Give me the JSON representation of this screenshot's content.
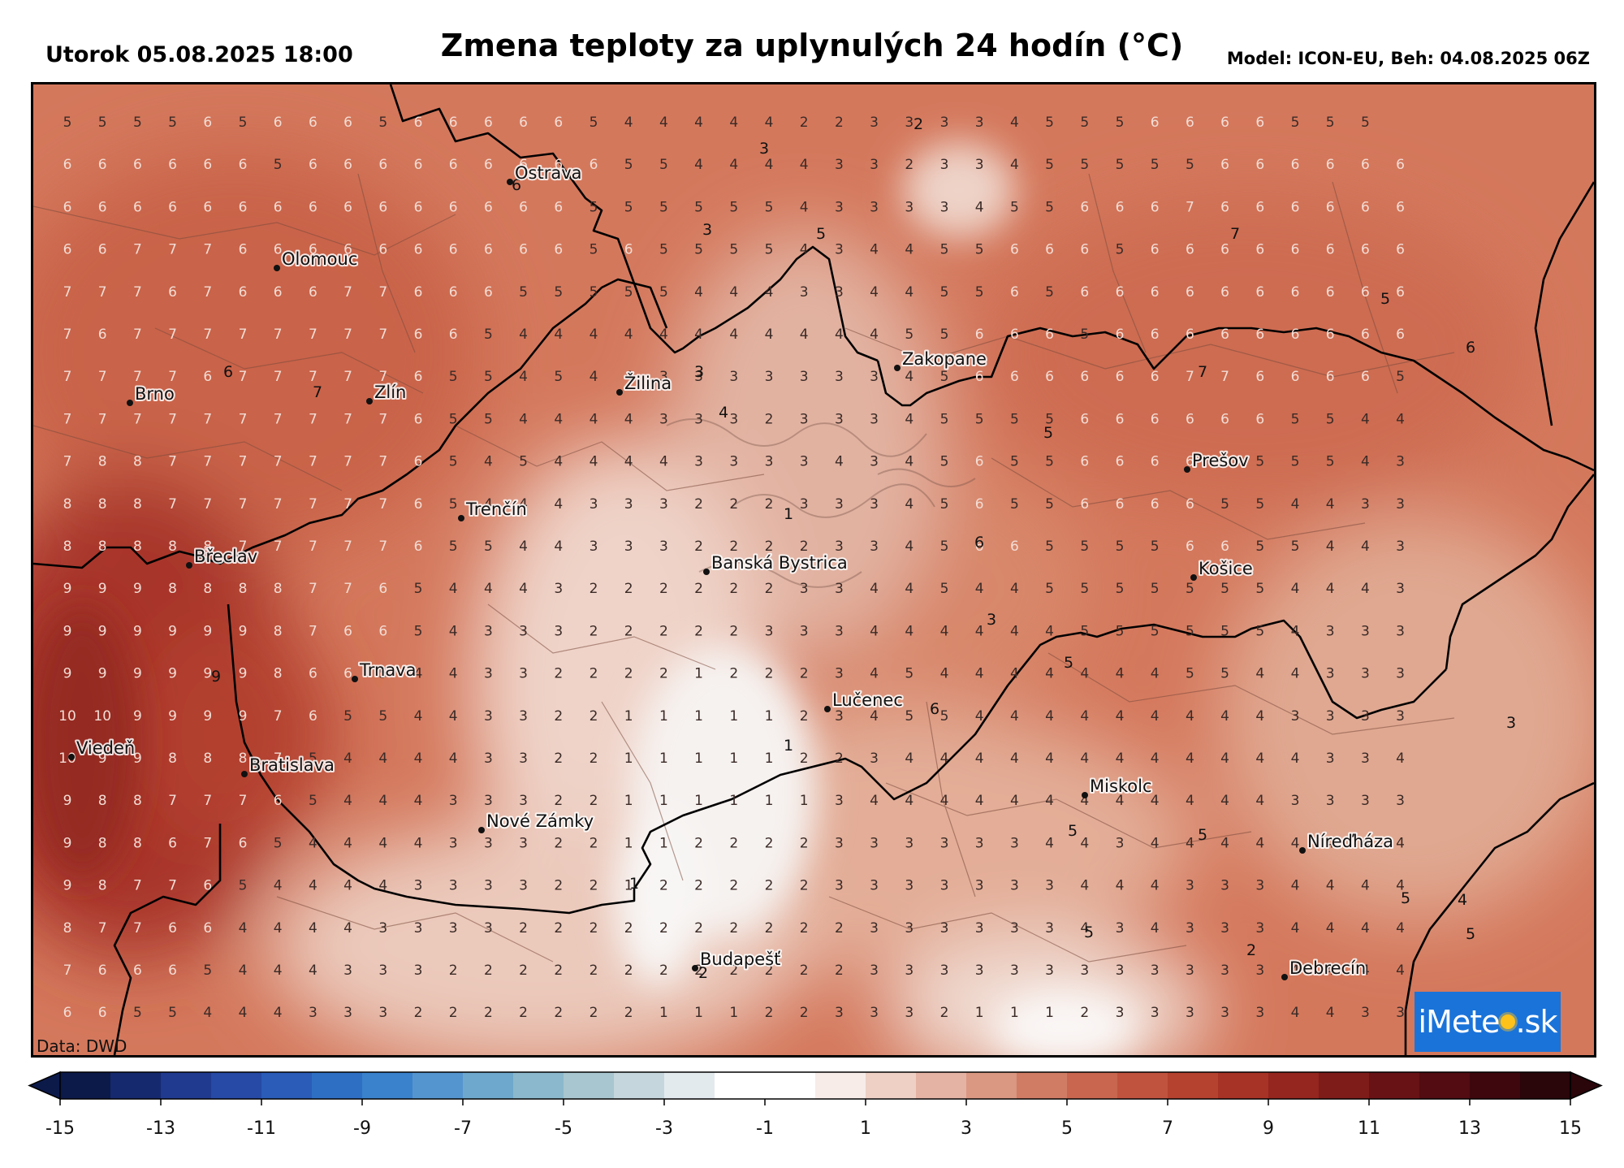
{
  "header": {
    "date": "Utorok 05.08.2025 18:00",
    "title": "Zmena teploty za uplynulých 24 hodín (°C)",
    "model": "Model: ICON-EU, Beh: 04.08.2025 06Z"
  },
  "source": "Data: DWD",
  "logo": {
    "prefix": "iMete",
    "suffix": ".sk"
  },
  "cities": [
    {
      "name": "Ostrava"
    },
    {
      "name": "Olomouc"
    },
    {
      "name": "Brno"
    },
    {
      "name": "Zlín"
    },
    {
      "name": "Žilina"
    },
    {
      "name": "Zakopane"
    },
    {
      "name": "Prešov"
    },
    {
      "name": "Trenčín"
    },
    {
      "name": "Břeclav"
    },
    {
      "name": "Banská Bystrica"
    },
    {
      "name": "Košice"
    },
    {
      "name": "Trnava"
    },
    {
      "name": "Lučenec"
    },
    {
      "name": "Viedeň"
    },
    {
      "name": "Bratislava"
    },
    {
      "name": "Miskolc"
    },
    {
      "name": "Nové Zámky"
    },
    {
      "name": "Níreďháza"
    },
    {
      "name": "Budapešť"
    },
    {
      "name": "Debrecín"
    }
  ],
  "grid_values": [
    "5 5 5 5 6 5 6 6 6 5 6 6 6 6 6 5 4 4 4 4 4 2 2 3 3 3 3 4 5 5 5 6 6 6 6 5 5 5",
    "6 6 6 6 6 6 5 6 6 6 6 6 6 6 6 6 5 5 4 4 4 4 3 3 2 3 3 4 5 5 5 5 5 6 6 6 6 6 6",
    "6 6 6 6 6 6 6 6 6 6 6 6 6 6 6 5 5 5 5 5 5 4 3 3 3 3 4 5 5 6 6 6 7 6 6 6 6 6 6",
    "6 6 7 7 7 6 6 6 6 6 6 6 6 6 6 5 6 5 5 5 5 4 3 4 4 5 5 6 6 6 5 6 6 6 6 6 6 6 6",
    "7 7 7 6 7 6 6 6 7 7 6 6 6 5 5 5 5 5 4 4 4 3 3 4 4 5 5 6 5 6 6 6 6 6 6 6 6 6 6",
    "7 6 7 7 7 7 7 7 7 7 6 6 5 4 4 4 4 4 4 4 4 4 4 4 5 5 6 6 6 5 6 6 6 6 6 6 6 6 6",
    "7 7 7 7 6 7 7 7 7 7 6 5 5 4 5 4 4 3 3 3 3 3 3 3 4 5 6 6 6 6 6 6 7 7 6 6 6 6 5",
    "7 7 7 7 7 7 7 7 7 7 6 5 5 4 4 4 4 3 3 3 2 3 3 3 4 5 5 5 5 6 6 6 6 6 6 5 5 4 4",
    "7 8 8 7 7 7 7 7 7 7 6 5 4 5 4 4 4 4 3 3 3 3 4 3 4 5 6 5 5 6 6 6 6 6 5 5 5 4 3",
    "8 8 8 7 7 7 7 7 7 7 6 5 4 4 4 3 3 3 2 2 2 3 3 3 4 5 6 5 5 6 6 6 6 5 5 4 4 3 3",
    "8 8 8 8 8 7 7 7 7 7 6 5 5 4 4 3 3 3 2 2 2 2 3 3 4 5 6 6 5 5 5 5 6 6 5 5 4 4 3",
    "9 9 9 8 8 8 8 7 7 6 5 4 4 4 3 2 2 2 2 2 2 3 3 4 4 5 4 4 5 5 5 5 5 5 5 4 4 4 3",
    "9 9 9 9 9 9 8 7 6 6 5 4 3 3 3 2 2 2 2 2 3 3 3 4 4 4 4 4 4 5 5 5 5 5 5 4 3 3 3",
    "9 9 9 9 9 9 8 6 6 5 4 4 3 3 2 2 2 2 1 2 2 2 3 4 5 4 4 4 4 4 4 4 5 5 4 4 3 3 3",
    "10 10 9 9 9 9 7 6 5 5 4 4 3 3 2 2 1 1 1 1 1 2 3 4 5 5 4 4 4 4 4 4 4 4 4 3 3 3 3",
    "10 9 9 8 8 8 7 5 4 4 4 4 3 3 2 2 1 1 1 1 1 2 2 3 4 4 4 4 4 4 4 4 4 4 4 4 3 3 4",
    "9 8 8 7 7 7 6 5 4 4 4 3 3 3 2 2 1 1 1 1 1 1 3 4 4 4 4 4 4 4 4 4 4 4 4 3 3 3 3",
    "9 8 8 6 7 6 5 4 4 4 4 3 3 3 2 2 1 1 2 2 2 2 3 3 3 3 3 3 4 4 3 4 4 4 4 4 4 4 4",
    "9 8 7 7 6 5 4 4 4 4 3 3 3 3 2 2 1 2 2 2 2 2 3 3 3 3 3 3 3 4 4 4 3 3 3 4 4 4 4",
    "8 7 7 6 6 4 4 4 4 3 3 3 3 2 2 2 2 2 2 2 2 2 2 3 3 3 3 3 3 4 3 4 3 3 3 4 4 4 4",
    "7 6 6 6 5 4 4 4 3 3 3 2 2 2 2 2 2 2 2 2 2 2 2 3 3 3 3 3 3 3 3 3 3 3 3 4 4 4 4",
    "6 6 5 5 4 4 4 3 3 3 2 2 2 2 2 2 2 1 1 1 2 2 3 3 3 2 1 1 1 2 3 3 3 3 3 4 4 3 3"
  ],
  "contour_labels": [
    "2",
    "3",
    "3",
    "5",
    "6",
    "7",
    "5",
    "6",
    "7",
    "3",
    "4",
    "6",
    "7",
    "5",
    "1",
    "6",
    "3",
    "9",
    "5",
    "6",
    "1",
    "3",
    "5",
    "5",
    "1",
    "5",
    "2",
    "2",
    "5",
    "5",
    "4"
  ],
  "colorbar": {
    "tick_labels": [
      "-15",
      "-13",
      "-11",
      "-9",
      "-7",
      "-5",
      "-3",
      "-1",
      "1",
      "3",
      "5",
      "7",
      "9",
      "11",
      "13",
      "15"
    ],
    "colors": [
      "#0c1a4a",
      "#15296e",
      "#1f3a8f",
      "#264aa5",
      "#2a5cb8",
      "#2e6fc4",
      "#3a82cc",
      "#5595cf",
      "#6ea8cc",
      "#8bb8cc",
      "#a8c6d0",
      "#c5d6dd",
      "#e2eaee",
      "#ffffff",
      "#ffffff",
      "#f7ece8",
      "#eed0c5",
      "#e4b3a3",
      "#da9782",
      "#d07c65",
      "#c8664f",
      "#c0533e",
      "#b5412f",
      "#a73226",
      "#94261f",
      "#7e1c1a",
      "#681216",
      "#520c12",
      "#3d070d",
      "#2a050a"
    ]
  }
}
